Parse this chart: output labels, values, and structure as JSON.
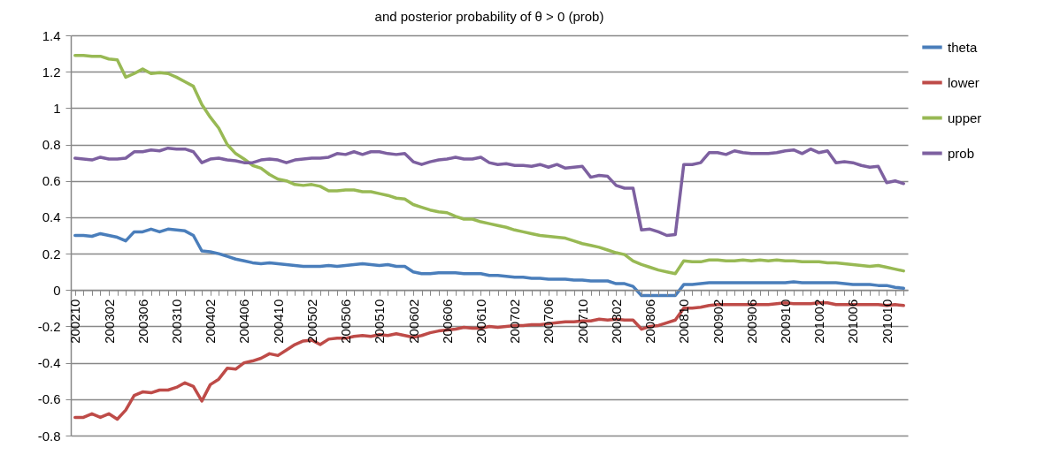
{
  "chart_data": {
    "type": "line",
    "title": "and posterior probability of θ > 0 (prob)",
    "categories": [
      "200210",
      null,
      null,
      null,
      "200302",
      null,
      null,
      null,
      "200306",
      null,
      null,
      null,
      "200310",
      null,
      null,
      null,
      "200402",
      null,
      null,
      null,
      "200406",
      null,
      null,
      null,
      "200410",
      null,
      null,
      null,
      "200502",
      null,
      null,
      null,
      "200506",
      null,
      null,
      null,
      "200510",
      null,
      null,
      null,
      "200602",
      null,
      null,
      null,
      "200606",
      null,
      null,
      null,
      "200610",
      null,
      null,
      null,
      "200702",
      null,
      null,
      null,
      "200706",
      null,
      null,
      null,
      "200710",
      null,
      null,
      null,
      "200802",
      null,
      null,
      null,
      "200806",
      null,
      null,
      null,
      "200810",
      null,
      null,
      null,
      "200902",
      null,
      null,
      null,
      "200906",
      null,
      null,
      null,
      "200910",
      null,
      null,
      null,
      "201002",
      null,
      null,
      null,
      "201006",
      null,
      null,
      null,
      "201010",
      null,
      null
    ],
    "series": [
      {
        "name": "theta",
        "color": "#4a7ebb",
        "values": [
          0.3,
          0.3,
          0.295,
          0.31,
          0.3,
          0.29,
          0.27,
          0.32,
          0.32,
          0.335,
          0.32,
          0.335,
          0.33,
          0.325,
          0.3,
          0.215,
          0.21,
          0.2,
          0.185,
          0.17,
          0.16,
          0.15,
          0.145,
          0.15,
          0.145,
          0.14,
          0.135,
          0.13,
          0.13,
          0.13,
          0.135,
          0.13,
          0.135,
          0.14,
          0.145,
          0.14,
          0.135,
          0.14,
          0.13,
          0.13,
          0.1,
          0.09,
          0.09,
          0.095,
          0.095,
          0.095,
          0.09,
          0.09,
          0.09,
          0.08,
          0.08,
          0.075,
          0.07,
          0.07,
          0.065,
          0.065,
          0.06,
          0.06,
          0.06,
          0.055,
          0.055,
          0.05,
          0.05,
          0.05,
          0.035,
          0.035,
          0.02,
          -0.03,
          -0.03,
          -0.03,
          -0.03,
          -0.03,
          0.03,
          0.03,
          0.035,
          0.04,
          0.04,
          0.04,
          0.04,
          0.04,
          0.04,
          0.04,
          0.04,
          0.04,
          0.04,
          0.045,
          0.04,
          0.04,
          0.04,
          0.04,
          0.04,
          0.035,
          0.03,
          0.03,
          0.03,
          0.025,
          0.025,
          0.015,
          0.01
        ]
      },
      {
        "name": "lower",
        "color": "#be4b48",
        "values": [
          -0.7,
          -0.7,
          -0.68,
          -0.7,
          -0.68,
          -0.71,
          -0.66,
          -0.58,
          -0.56,
          -0.565,
          -0.55,
          -0.55,
          -0.535,
          -0.51,
          -0.53,
          -0.61,
          -0.52,
          -0.49,
          -0.43,
          -0.435,
          -0.4,
          -0.39,
          -0.375,
          -0.35,
          -0.36,
          -0.33,
          -0.3,
          -0.28,
          -0.275,
          -0.3,
          -0.27,
          -0.265,
          -0.265,
          -0.255,
          -0.25,
          -0.255,
          -0.245,
          -0.25,
          -0.24,
          -0.25,
          -0.26,
          -0.25,
          -0.235,
          -0.225,
          -0.22,
          -0.215,
          -0.205,
          -0.21,
          -0.21,
          -0.2,
          -0.205,
          -0.2,
          -0.195,
          -0.195,
          -0.19,
          -0.19,
          -0.185,
          -0.18,
          -0.175,
          -0.175,
          -0.17,
          -0.17,
          -0.16,
          -0.165,
          -0.16,
          -0.165,
          -0.165,
          -0.215,
          -0.2,
          -0.195,
          -0.18,
          -0.165,
          -0.1,
          -0.1,
          -0.095,
          -0.085,
          -0.08,
          -0.08,
          -0.08,
          -0.08,
          -0.08,
          -0.08,
          -0.08,
          -0.075,
          -0.07,
          -0.075,
          -0.075,
          -0.075,
          -0.07,
          -0.07,
          -0.08,
          -0.08,
          -0.08,
          -0.08,
          -0.08,
          -0.08,
          -0.085,
          -0.08,
          -0.085
        ]
      },
      {
        "name": "upper",
        "color": "#98b954",
        "values": [
          1.29,
          1.29,
          1.285,
          1.285,
          1.27,
          1.265,
          1.17,
          1.19,
          1.215,
          1.19,
          1.195,
          1.19,
          1.17,
          1.145,
          1.12,
          1.02,
          0.95,
          0.89,
          0.8,
          0.75,
          0.72,
          0.685,
          0.67,
          0.635,
          0.61,
          0.6,
          0.58,
          0.575,
          0.58,
          0.57,
          0.545,
          0.545,
          0.55,
          0.55,
          0.54,
          0.54,
          0.53,
          0.52,
          0.505,
          0.5,
          0.47,
          0.455,
          0.44,
          0.43,
          0.425,
          0.405,
          0.39,
          0.39,
          0.375,
          0.365,
          0.355,
          0.345,
          0.33,
          0.32,
          0.31,
          0.3,
          0.295,
          0.29,
          0.285,
          0.27,
          0.255,
          0.245,
          0.235,
          0.22,
          0.205,
          0.195,
          0.16,
          0.14,
          0.125,
          0.11,
          0.1,
          0.09,
          0.16,
          0.155,
          0.155,
          0.165,
          0.165,
          0.16,
          0.16,
          0.165,
          0.16,
          0.165,
          0.16,
          0.165,
          0.16,
          0.16,
          0.155,
          0.155,
          0.155,
          0.15,
          0.15,
          0.145,
          0.14,
          0.135,
          0.13,
          0.135,
          0.125,
          0.115,
          0.105
        ]
      },
      {
        "name": "prob",
        "color": "#7d60a0",
        "values": [
          0.725,
          0.72,
          0.715,
          0.73,
          0.72,
          0.72,
          0.725,
          0.76,
          0.76,
          0.77,
          0.765,
          0.78,
          0.775,
          0.775,
          0.76,
          0.7,
          0.72,
          0.725,
          0.715,
          0.71,
          0.7,
          0.7,
          0.715,
          0.72,
          0.715,
          0.7,
          0.715,
          0.72,
          0.725,
          0.725,
          0.73,
          0.75,
          0.745,
          0.76,
          0.745,
          0.76,
          0.76,
          0.75,
          0.745,
          0.75,
          0.705,
          0.69,
          0.705,
          0.715,
          0.72,
          0.73,
          0.72,
          0.72,
          0.73,
          0.7,
          0.69,
          0.695,
          0.685,
          0.685,
          0.68,
          0.69,
          0.675,
          0.69,
          0.67,
          0.675,
          0.68,
          0.62,
          0.63,
          0.625,
          0.575,
          0.56,
          0.56,
          0.33,
          0.335,
          0.32,
          0.3,
          0.305,
          0.69,
          0.69,
          0.7,
          0.755,
          0.755,
          0.745,
          0.765,
          0.755,
          0.75,
          0.75,
          0.75,
          0.755,
          0.765,
          0.77,
          0.75,
          0.775,
          0.755,
          0.765,
          0.7,
          0.705,
          0.7,
          0.685,
          0.675,
          0.68,
          0.59,
          0.6,
          0.585
        ]
      }
    ],
    "ylim": [
      -0.8,
      1.4
    ],
    "yticks": [
      -0.8,
      -0.6,
      -0.4,
      -0.2,
      0,
      0.2,
      0.4,
      0.6,
      0.8,
      1,
      1.2,
      1.4
    ],
    "grid": "y",
    "legend": "right",
    "marker": "none",
    "line_style": "solid"
  }
}
